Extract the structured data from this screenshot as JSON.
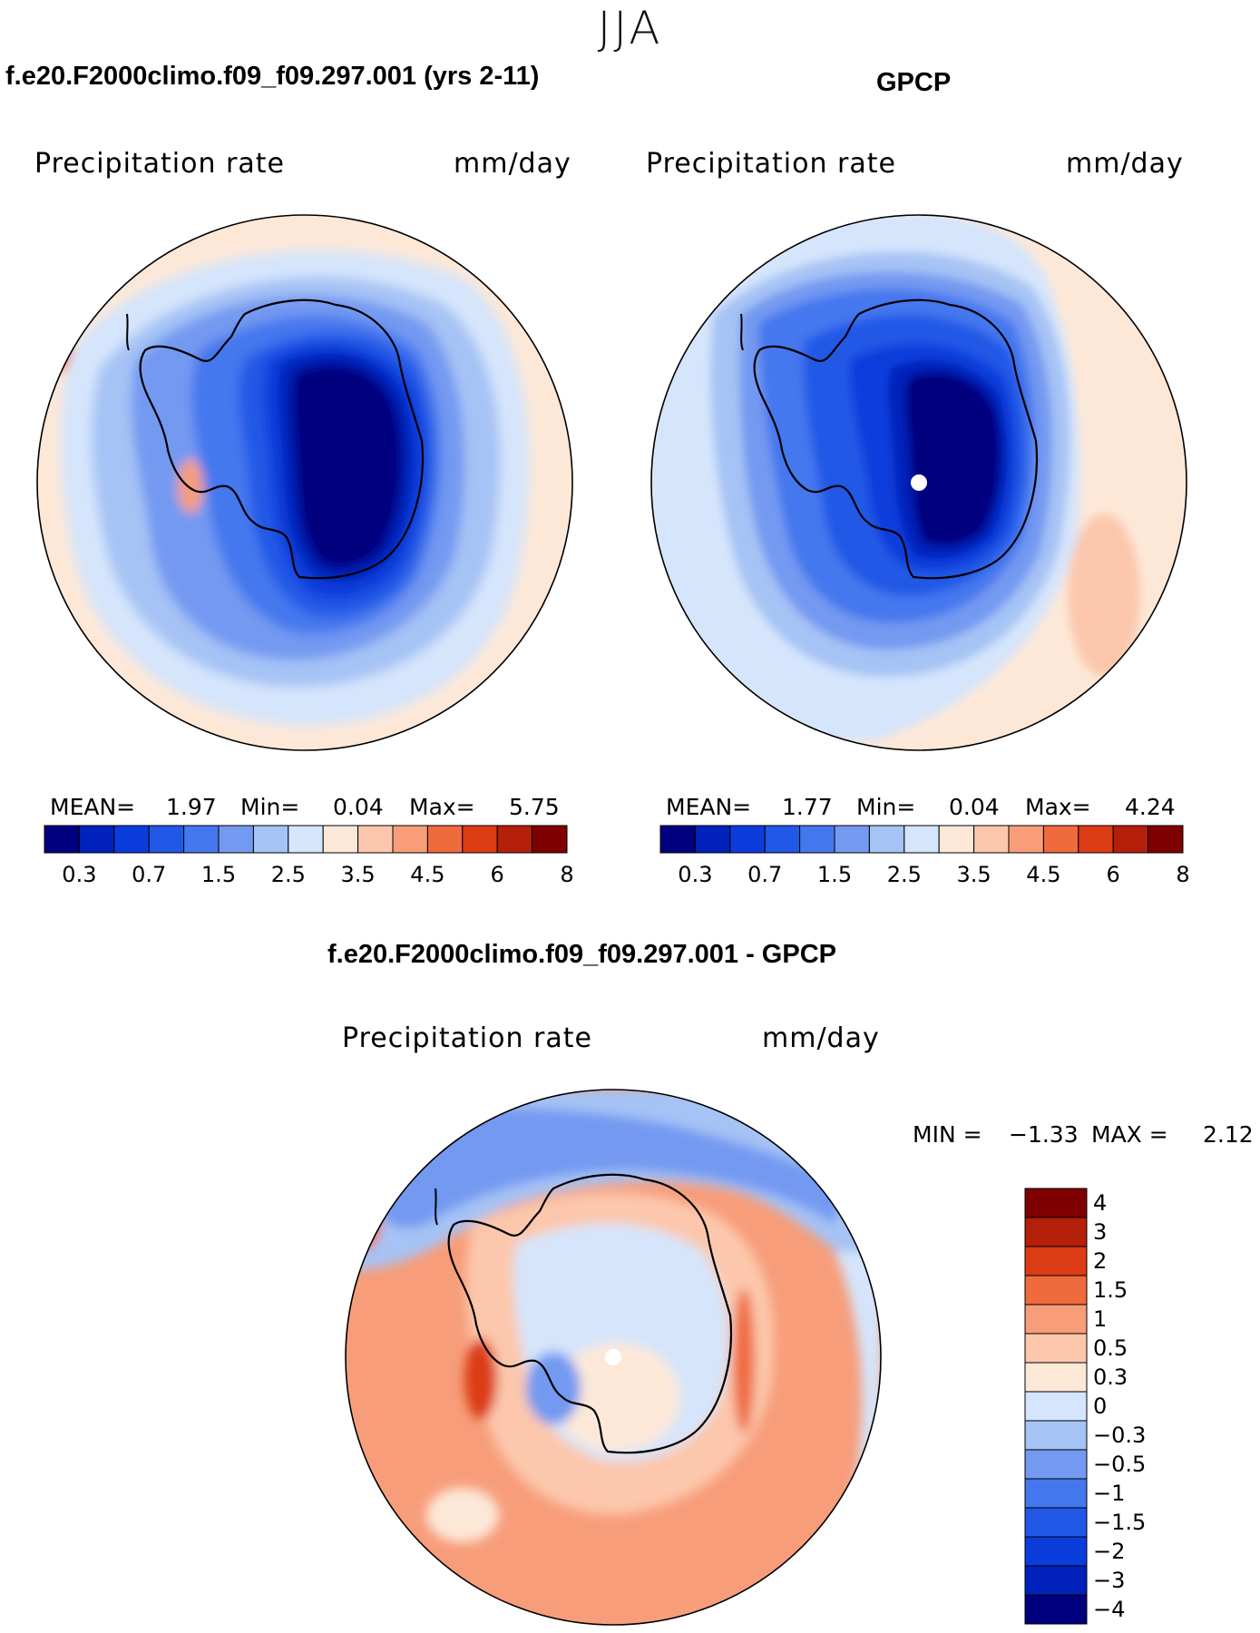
{
  "figure": {
    "season": "JJA",
    "colors": {
      "seq_scale": [
        "#00007f",
        "#0022bb",
        "#0b3ddc",
        "#2158e6",
        "#4477ee",
        "#7399f1",
        "#a6c3f5",
        "#d5e5fb",
        "#fde8d8",
        "#fcc7ac",
        "#f79d7a",
        "#ef6a3c",
        "#dc3c14",
        "#b41f0a",
        "#7f0000"
      ],
      "diff_scale": [
        "#00007f",
        "#0022bb",
        "#0b3ddc",
        "#2158e6",
        "#4477ee",
        "#7399f1",
        "#a6c3f5",
        "#d5e5fb",
        "#fde8d8",
        "#fcc7ac",
        "#f79d7a",
        "#ef6a3c",
        "#dc3c14",
        "#b41f0a",
        "#7f0000"
      ]
    }
  },
  "panels": {
    "model": {
      "title": "f.e20.F2000climo.f09_f09.297.001 (yrs 2-11)",
      "variable": "Precipitation rate",
      "units": "mm/day",
      "mean_label": "MEAN=",
      "mean": "1.97",
      "min_label": "Min=",
      "min": "0.04",
      "max_label": "Max=",
      "max": "5.75"
    },
    "obs": {
      "title": "GPCP",
      "variable": "Precipitation rate",
      "units": "mm/day",
      "mean_label": "MEAN=",
      "mean": "1.77",
      "min_label": "Min=",
      "min": "0.04",
      "max_label": "Max=",
      "max": "4.24"
    },
    "diff": {
      "title": "f.e20.F2000climo.f09_f09.297.001 - GPCP",
      "variable": "Precipitation rate",
      "units": "mm/day",
      "min_label": "MIN =",
      "min": "−1.33",
      "max_label": "MAX =",
      "max": "2.12"
    }
  },
  "colorbar_ticks": [
    "0.3",
    "0.7",
    "1.5",
    "2.5",
    "3.5",
    "4.5",
    "6",
    "8"
  ],
  "diff_colorbar_ticks": [
    "4",
    "3",
    "2",
    "1.5",
    "1",
    "0.5",
    "0.3",
    "0",
    "−0.3",
    "−0.5",
    "−1",
    "−1.5",
    "−2",
    "−3",
    "−4"
  ]
}
